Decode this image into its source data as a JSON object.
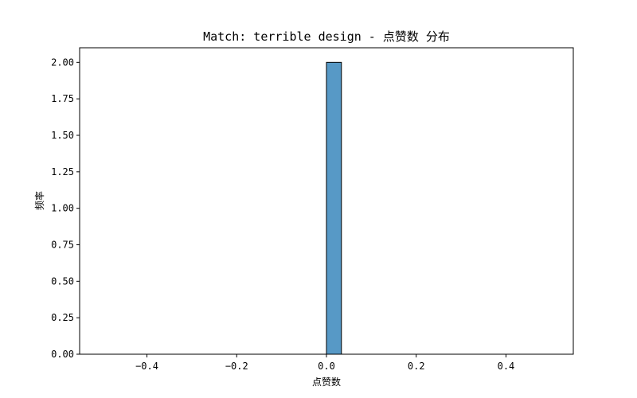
{
  "chart_data": {
    "type": "bar",
    "title": "Match: terrible design - 点赞数 分布",
    "xlabel": "点赞数",
    "ylabel": "频率",
    "xlim": [
      -0.55,
      0.55
    ],
    "ylim": [
      0,
      2.1
    ],
    "xticks": [
      -0.4,
      -0.2,
      0.0,
      0.2,
      0.4
    ],
    "xtick_labels": [
      "−0.4",
      "−0.2",
      "0.0",
      "0.2",
      "0.4"
    ],
    "yticks": [
      0,
      0.25,
      0.5,
      0.75,
      1.0,
      1.25,
      1.5,
      1.75,
      2.0
    ],
    "ytick_labels": [
      "0.00",
      "0.25",
      "0.50",
      "0.75",
      "1.00",
      "1.25",
      "1.50",
      "1.75",
      "2.00"
    ],
    "bins": {
      "start": -0.5,
      "end": 0.5,
      "count": 30
    },
    "values": [
      0,
      0,
      0,
      0,
      0,
      0,
      0,
      0,
      0,
      0,
      0,
      0,
      0,
      0,
      0,
      2,
      0,
      0,
      0,
      0,
      0,
      0,
      0,
      0,
      0,
      0,
      0,
      0,
      0,
      0
    ],
    "bar_color": "#5799c6",
    "edge_color": "#000000",
    "grid": false
  }
}
